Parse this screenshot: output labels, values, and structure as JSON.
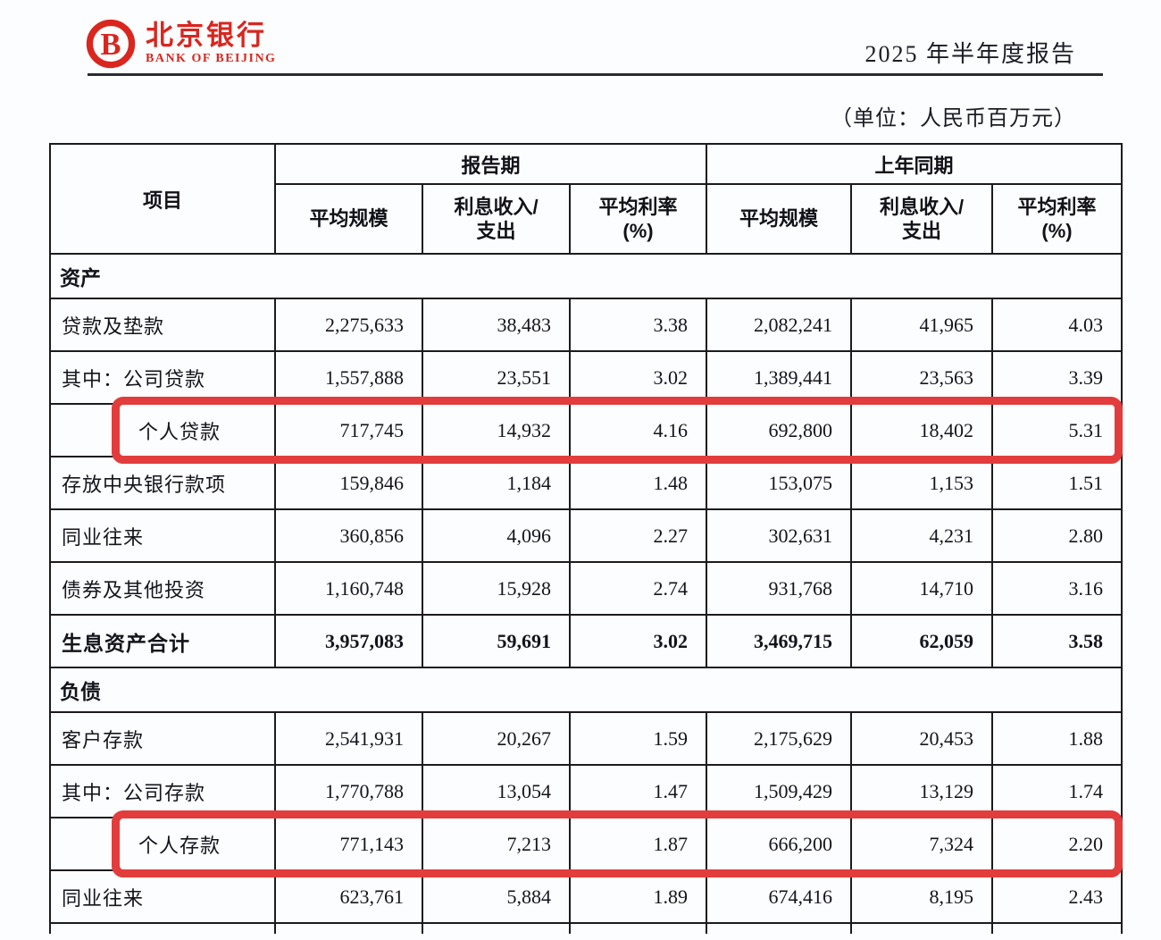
{
  "header": {
    "logo_cn": "北京银行",
    "logo_en": "BANK OF BEIJING",
    "report_title": "2025 年半年度报告",
    "unit_note": "（单位：人民币百万元）"
  },
  "table": {
    "item_header": "项目",
    "groups": [
      {
        "label": "报告期"
      },
      {
        "label": "上年同期"
      }
    ],
    "sub_headers": [
      "平均规模",
      "利息收入/\n支出",
      "平均利率\n(%)",
      "平均规模",
      "利息收入/\n支出",
      "平均利率\n(%)"
    ],
    "rows": [
      {
        "type": "section",
        "label": "资产"
      },
      {
        "type": "data",
        "label": "贷款及垫款",
        "values": [
          "2,275,633",
          "38,483",
          "3.38",
          "2,082,241",
          "41,965",
          "4.03"
        ]
      },
      {
        "type": "data",
        "label": "其中：公司贷款",
        "values": [
          "1,557,888",
          "23,551",
          "3.02",
          "1,389,441",
          "23,563",
          "3.39"
        ]
      },
      {
        "type": "data",
        "label": "个人贷款",
        "indent": true,
        "highlight": true,
        "values": [
          "717,745",
          "14,932",
          "4.16",
          "692,800",
          "18,402",
          "5.31"
        ]
      },
      {
        "type": "data",
        "label": "存放中央银行款项",
        "values": [
          "159,846",
          "1,184",
          "1.48",
          "153,075",
          "1,153",
          "1.51"
        ]
      },
      {
        "type": "data",
        "label": "同业往来",
        "values": [
          "360,856",
          "4,096",
          "2.27",
          "302,631",
          "4,231",
          "2.80"
        ]
      },
      {
        "type": "data",
        "label": "债券及其他投资",
        "values": [
          "1,160,748",
          "15,928",
          "2.74",
          "931,768",
          "14,710",
          "3.16"
        ]
      },
      {
        "type": "total",
        "label": "生息资产合计",
        "values": [
          "3,957,083",
          "59,691",
          "3.02",
          "3,469,715",
          "62,059",
          "3.58"
        ]
      },
      {
        "type": "section",
        "label": "负债"
      },
      {
        "type": "data",
        "label": "客户存款",
        "values": [
          "2,541,931",
          "20,267",
          "1.59",
          "2,175,629",
          "20,453",
          "1.88"
        ]
      },
      {
        "type": "data",
        "label": "其中：公司存款",
        "values": [
          "1,770,788",
          "13,054",
          "1.47",
          "1,509,429",
          "13,129",
          "1.74"
        ]
      },
      {
        "type": "data",
        "label": "个人存款",
        "indent": true,
        "highlight": true,
        "values": [
          "771,143",
          "7,213",
          "1.87",
          "666,200",
          "7,324",
          "2.20"
        ]
      },
      {
        "type": "data",
        "label": "同业往来",
        "values": [
          "623,761",
          "5,884",
          "1.89",
          "674,416",
          "8,195",
          "2.43"
        ]
      },
      {
        "type": "partial",
        "label": "",
        "values": [
          "",
          "",
          "",
          "",
          "",
          ""
        ]
      }
    ]
  },
  "colors": {
    "highlight_red": "#e23c3c",
    "logo_red": "#d9261f",
    "text_dark": "#14141c"
  }
}
